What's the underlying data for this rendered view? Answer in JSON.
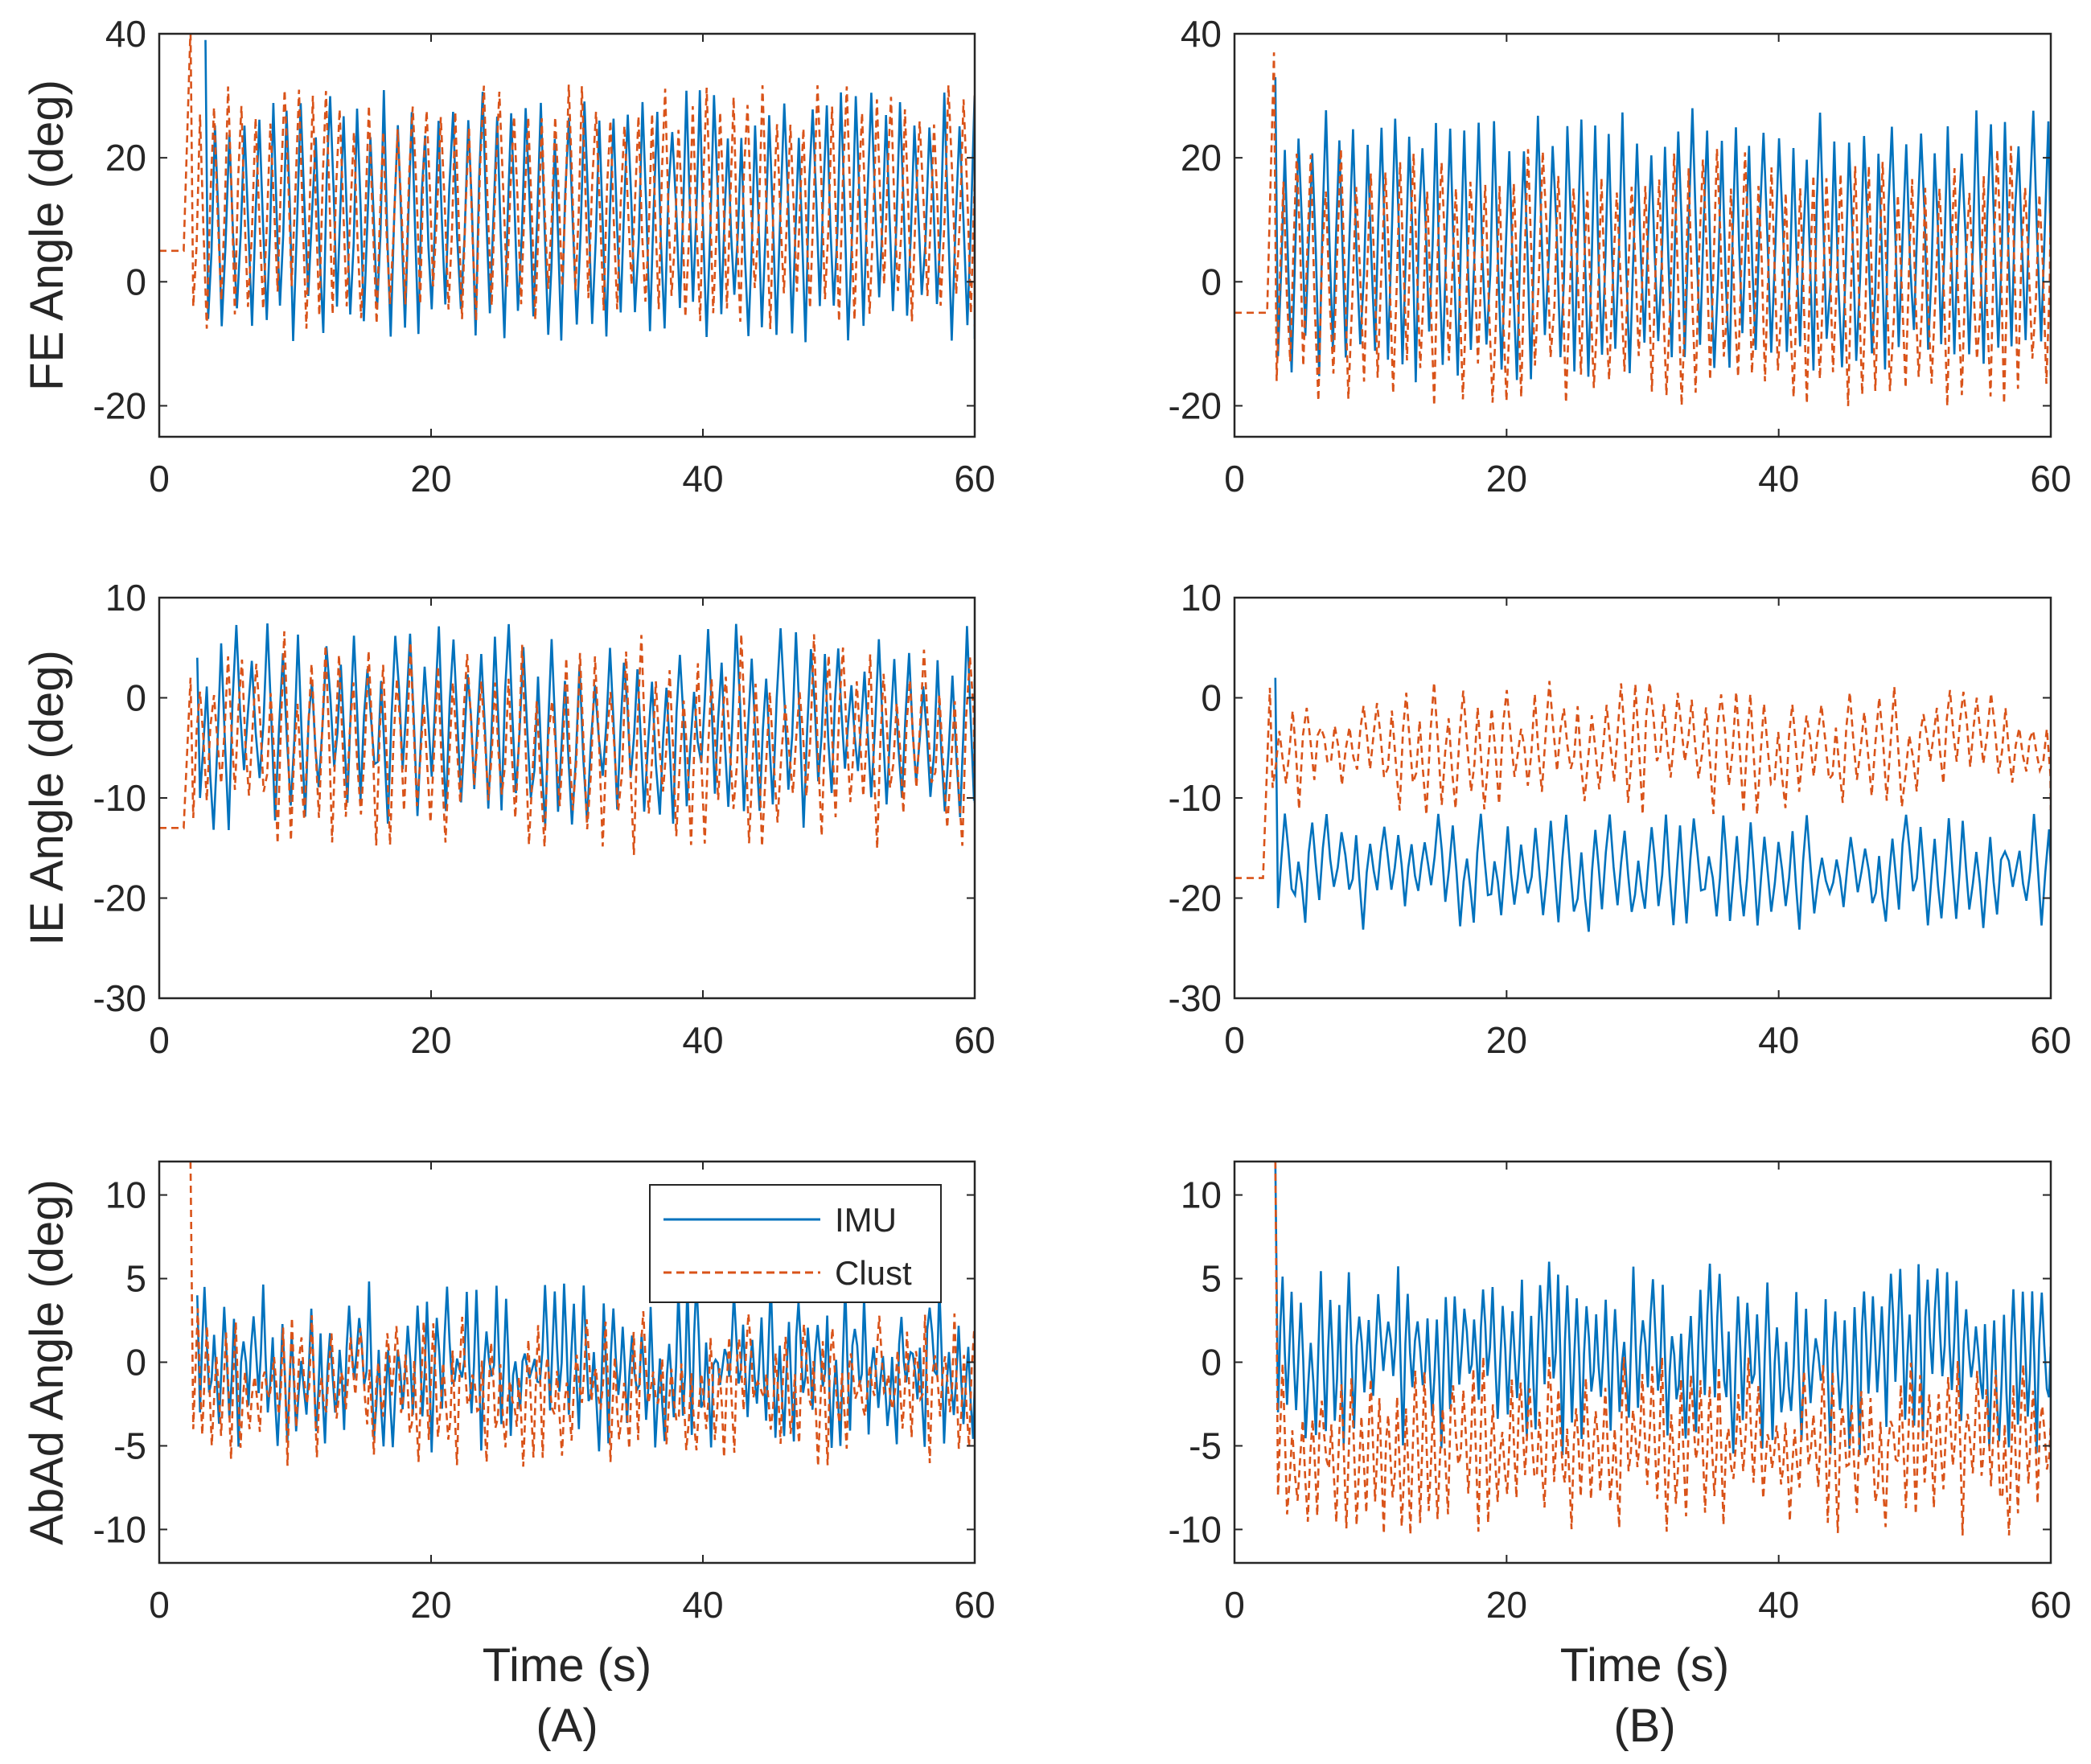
{
  "colors": {
    "imu": "#0072BD",
    "clust": "#D95319",
    "axis": "#262626"
  },
  "x_label": "Time (s)",
  "panel_labels": [
    "(A)",
    "(B)"
  ],
  "legend": [
    "IMU",
    "Clust"
  ],
  "chart_data": [
    {
      "id": "A-FE",
      "type": "line",
      "panel": "A",
      "ylabel": "FE Angle (deg)",
      "xlim": [
        0,
        60
      ],
      "ylim": [
        -25,
        40
      ],
      "xticks": [
        0,
        20,
        40,
        60
      ],
      "yticks": [
        -20,
        0,
        20,
        40
      ],
      "series": [
        {
          "name": "IMU",
          "start": 3.4,
          "pre": null,
          "spike": 39,
          "max": 27,
          "min": -6,
          "period": 1.05,
          "seed": 11,
          "noise": 0.12
        },
        {
          "name": "Clust",
          "start": 2.3,
          "pre": 5,
          "spike": 41,
          "max": 28,
          "min": -4,
          "period": 1.05,
          "seed": 12,
          "noise": 0.12
        }
      ]
    },
    {
      "id": "B-FE",
      "type": "line",
      "panel": "B",
      "ylabel": "",
      "xlim": [
        0,
        60
      ],
      "ylim": [
        -25,
        40
      ],
      "xticks": [
        0,
        20,
        40,
        60
      ],
      "yticks": [
        -20,
        0,
        20,
        40
      ],
      "series": [
        {
          "name": "IMU",
          "start": 3.0,
          "pre": null,
          "spike": 33,
          "max": 24,
          "min": -12,
          "period": 1.05,
          "seed": 21,
          "noise": 0.12
        },
        {
          "name": "Clust",
          "start": 2.9,
          "pre": -5,
          "spike": 37,
          "max": 18,
          "min": -16,
          "period": 1.05,
          "seed": 22,
          "noise": 0.12
        }
      ]
    },
    {
      "id": "A-IE",
      "type": "line",
      "panel": "A",
      "ylabel": "IE Angle (deg)",
      "xlim": [
        0,
        60
      ],
      "ylim": [
        -30,
        10
      ],
      "xticks": [
        0,
        20,
        40,
        60
      ],
      "yticks": [
        -30,
        -20,
        -10,
        0,
        10
      ],
      "series": [
        {
          "name": "IMU",
          "start": 2.8,
          "pre": null,
          "spike": 4,
          "max": 4,
          "min": -10,
          "period": 1.05,
          "seed": 31,
          "noise": 0.25
        },
        {
          "name": "Clust",
          "start": 2.3,
          "pre": -13,
          "spike": 2,
          "max": 3,
          "min": -12,
          "period": 1.05,
          "seed": 32,
          "noise": 0.25
        }
      ]
    },
    {
      "id": "B-IE",
      "type": "line",
      "panel": "B",
      "ylabel": "",
      "xlim": [
        0,
        60
      ],
      "ylim": [
        -30,
        10
      ],
      "xticks": [
        0,
        20,
        40,
        60
      ],
      "yticks": [
        -30,
        -20,
        -10,
        0,
        10
      ],
      "series": [
        {
          "name": "IMU",
          "start": 3.0,
          "pre": null,
          "spike": 2,
          "max": -14,
          "min": -21,
          "period": 1.05,
          "seed": 41,
          "noise": 0.35
        },
        {
          "name": "Clust",
          "start": 2.6,
          "pre": -18,
          "spike": 1,
          "max": -1,
          "min": -9,
          "period": 1.05,
          "seed": 42,
          "noise": 0.35
        }
      ]
    },
    {
      "id": "A-AbAd",
      "type": "line",
      "panel": "A",
      "ylabel": "AbAd Angle (deg)",
      "xlim": [
        0,
        60
      ],
      "ylim": [
        -12,
        12
      ],
      "xticks": [
        0,
        20,
        40,
        60
      ],
      "yticks": [
        -10,
        -5,
        0,
        5,
        10
      ],
      "series": [
        {
          "name": "IMU",
          "start": 2.8,
          "pre": null,
          "spike": 4,
          "max": 2.5,
          "min": -3,
          "period": 0.7,
          "seed": 51,
          "noise": 0.45
        },
        {
          "name": "Clust",
          "start": 2.3,
          "pre": null,
          "spike": 12,
          "max": 1,
          "min": -4,
          "period": 0.7,
          "seed": 52,
          "noise": 0.45
        }
      ]
    },
    {
      "id": "B-AbAd",
      "type": "line",
      "panel": "B",
      "ylabel": "",
      "xlim": [
        0,
        60
      ],
      "ylim": [
        -12,
        12
      ],
      "xticks": [
        0,
        20,
        40,
        60
      ],
      "yticks": [
        -10,
        -5,
        0,
        5,
        10
      ],
      "series": [
        {
          "name": "IMU",
          "start": 3.0,
          "pre": null,
          "spike": 12,
          "max": 3.5,
          "min": -3,
          "period": 0.7,
          "seed": 61,
          "noise": 0.4
        },
        {
          "name": "Clust",
          "start": 3.0,
          "pre": null,
          "spike": 12,
          "max": -2,
          "min": -8,
          "period": 0.7,
          "seed": 62,
          "noise": 0.4
        }
      ]
    }
  ]
}
